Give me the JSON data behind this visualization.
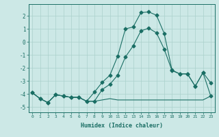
{
  "xlabel": "Humidex (Indice chaleur)",
  "background_color": "#cce8e6",
  "grid_color": "#aad0cc",
  "line_color": "#1a6e64",
  "xlim": [
    -0.5,
    23.5
  ],
  "ylim": [
    -5.4,
    2.9
  ],
  "yticks": [
    -5,
    -4,
    -3,
    -2,
    -1,
    0,
    1,
    2
  ],
  "xticks": [
    0,
    1,
    2,
    3,
    4,
    5,
    6,
    7,
    8,
    9,
    10,
    11,
    12,
    13,
    14,
    15,
    16,
    17,
    18,
    19,
    20,
    21,
    22,
    23
  ],
  "line1_x": [
    0,
    1,
    2,
    3,
    4,
    5,
    6,
    7,
    8,
    9,
    10,
    11,
    12,
    13,
    14,
    15,
    16,
    17,
    18,
    19,
    20,
    21,
    22,
    23
  ],
  "line1_y": [
    -3.9,
    -4.35,
    -4.65,
    -4.05,
    -4.15,
    -4.25,
    -4.25,
    -4.55,
    -4.55,
    -4.45,
    -4.35,
    -4.45,
    -4.45,
    -4.45,
    -4.45,
    -4.45,
    -4.45,
    -4.45,
    -4.45,
    -4.45,
    -4.45,
    -4.45,
    -4.45,
    -4.15
  ],
  "line2_x": [
    0,
    1,
    2,
    3,
    4,
    5,
    6,
    7,
    8,
    9,
    10,
    11,
    12,
    13,
    14,
    15,
    16,
    17,
    18,
    19,
    20,
    21,
    22,
    23
  ],
  "line2_y": [
    -3.9,
    -4.35,
    -4.65,
    -4.05,
    -4.15,
    -4.25,
    -4.25,
    -4.55,
    -3.85,
    -3.1,
    -2.55,
    -1.1,
    1.0,
    1.15,
    2.25,
    2.3,
    2.05,
    0.65,
    -2.15,
    -2.45,
    -2.45,
    -3.4,
    -2.35,
    -3.15
  ],
  "line3_x": [
    0,
    1,
    2,
    3,
    4,
    5,
    6,
    7,
    8,
    9,
    10,
    11,
    12,
    13,
    14,
    15,
    16,
    17,
    18,
    19,
    20,
    21,
    22,
    23
  ],
  "line3_y": [
    -3.9,
    -4.35,
    -4.65,
    -4.05,
    -4.15,
    -4.25,
    -4.25,
    -4.55,
    -4.55,
    -3.65,
    -3.25,
    -2.55,
    -1.15,
    -0.3,
    0.85,
    1.05,
    0.7,
    -0.55,
    -2.2,
    -2.45,
    -2.45,
    -3.4,
    -2.35,
    -4.15
  ]
}
